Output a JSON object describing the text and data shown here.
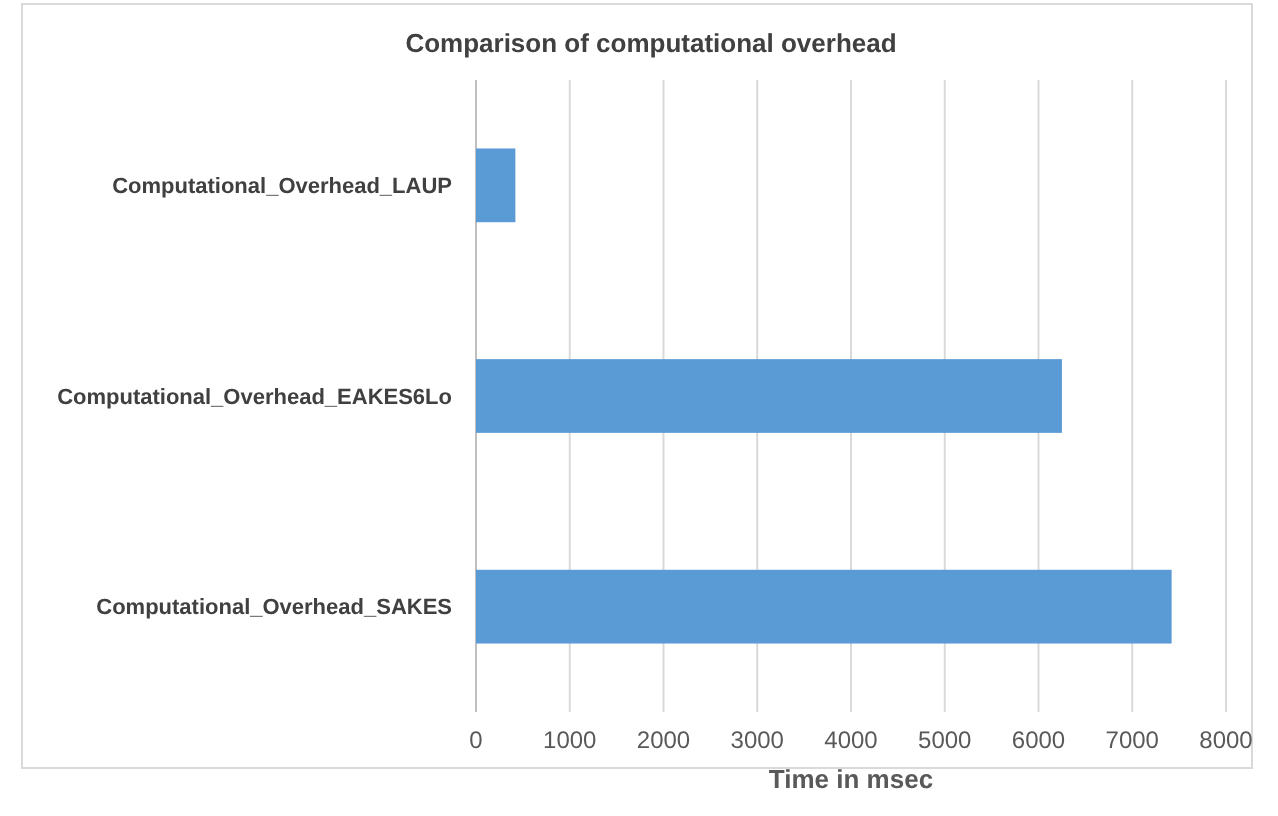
{
  "chart_data": {
    "type": "bar",
    "orientation": "horizontal",
    "title": "Comparison of computational overhead",
    "xlabel": "Time in msec",
    "categories": [
      "Computational_Overhead_LAUP",
      "Computational_Overhead_EAKES6Lo",
      "Computational_Overhead_SAKES"
    ],
    "values": [
      420,
      6250,
      7420
    ],
    "color": "#5b9bd5",
    "xlim": [
      0,
      8000
    ],
    "xticks": [
      0,
      1000,
      2000,
      3000,
      4000,
      5000,
      6000,
      7000,
      8000
    ],
    "grid": "x"
  }
}
